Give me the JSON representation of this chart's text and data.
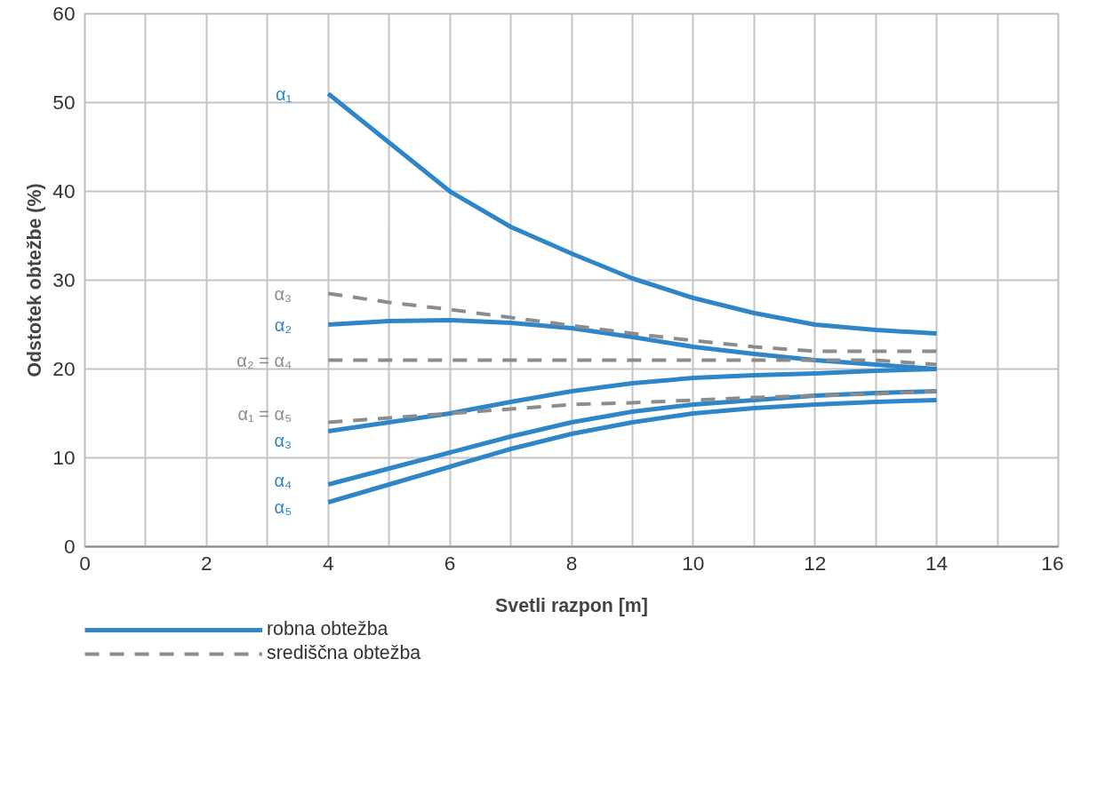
{
  "chart_data": {
    "type": "line",
    "xlabel": "Svetli razpon [m]",
    "ylabel": "Odstotek obtežbe (%)",
    "xlim": [
      0,
      16
    ],
    "ylim": [
      0,
      60
    ],
    "xticks": [
      0,
      {
        "value": 1,
        "label": null
      },
      2,
      {
        "value": 3,
        "label": null
      },
      4,
      {
        "value": 5,
        "label": null
      },
      6,
      {
        "value": 7,
        "label": null
      },
      8,
      {
        "value": 9,
        "label": null
      },
      10,
      {
        "value": 11,
        "label": null
      },
      12,
      {
        "value": 13,
        "label": null
      },
      14,
      {
        "value": 15,
        "label": null
      },
      16
    ],
    "yticks": [
      0,
      10,
      20,
      30,
      40,
      50,
      60
    ],
    "grid": true,
    "legend": "bottom",
    "marker": "none",
    "annotations": [
      "robna obtežba",
      "središčna obtežba"
    ],
    "x": [
      4,
      5,
      6,
      7,
      8,
      9,
      10,
      11,
      12,
      13,
      14
    ],
    "series": [
      {
        "name": "α₁",
        "color": "#2e86c8",
        "line_style": "solid",
        "values": [
          51,
          45.5,
          40,
          36,
          33,
          30.2,
          28,
          26.3,
          25,
          24.4,
          24
        ]
      },
      {
        "name": "α₂",
        "color": "#2e86c8",
        "line_style": "solid",
        "values": [
          25,
          25.4,
          25.5,
          25.2,
          24.6,
          23.6,
          22.5,
          21.7,
          21,
          20.5,
          20
        ]
      },
      {
        "name": "α₃",
        "color": "#2e86c8",
        "line_style": "solid",
        "values": [
          13,
          14,
          15,
          16.3,
          17.5,
          18.4,
          19,
          19.3,
          19.5,
          19.8,
          20
        ]
      },
      {
        "name": "α₄",
        "color": "#2e86c8",
        "line_style": "solid",
        "values": [
          7,
          8.8,
          10.6,
          12.4,
          14,
          15.2,
          16,
          16.5,
          17,
          17.3,
          17.5
        ]
      },
      {
        "name": "α₅",
        "color": "#2e86c8",
        "line_style": "solid",
        "values": [
          5,
          7,
          9,
          11,
          12.7,
          14,
          15,
          15.6,
          16,
          16.3,
          16.5
        ]
      },
      {
        "name": "α₃",
        "color": "#8c8c8c",
        "line_style": "dashed",
        "values": [
          28.5,
          27.5,
          26.7,
          25.8,
          24.9,
          24,
          23.2,
          22.5,
          22,
          22,
          22
        ]
      },
      {
        "name": "α₂ = α₄",
        "color": "#8c8c8c",
        "line_style": "dashed",
        "values": [
          21,
          21,
          21,
          21,
          21,
          21,
          21,
          21,
          21,
          21,
          20.5
        ]
      },
      {
        "name": "α₁ = α₅",
        "color": "#8c8c8c",
        "line_style": "dashed",
        "values": [
          14,
          14.5,
          15,
          15.5,
          16,
          16.2,
          16.5,
          16.8,
          17,
          17.2,
          17.5
        ]
      }
    ]
  }
}
